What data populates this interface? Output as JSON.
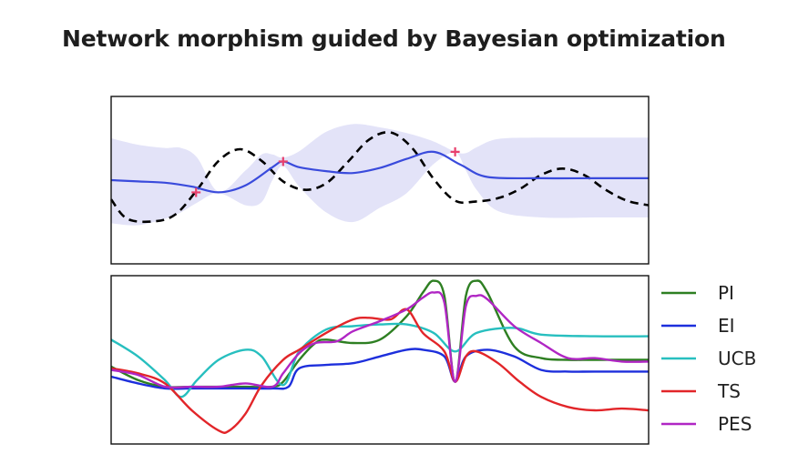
{
  "title": "Network morphism guided by Bayesian optimization",
  "chart_data": [
    {
      "type": "line",
      "panel": "gaussian-process-posterior",
      "x_range": [
        0,
        1
      ],
      "y_range": [
        -1.3,
        1.3
      ],
      "axis_ticks": "none",
      "grid": false,
      "series": [
        {
          "role": "objective",
          "style": "dashed",
          "color": "#000000",
          "x": [
            0,
            0.03,
            0.08,
            0.12,
            0.16,
            0.2,
            0.24,
            0.28,
            0.32,
            0.36,
            0.4,
            0.44,
            0.48,
            0.52,
            0.56,
            0.6,
            0.64,
            0.68,
            0.72,
            0.76,
            0.8,
            0.84,
            0.88,
            0.92,
            0.96,
            1.0
          ],
          "y": [
            -0.3,
            -0.6,
            -0.64,
            -0.53,
            -0.15,
            0.3,
            0.48,
            0.3,
            -0.02,
            -0.15,
            -0.05,
            0.28,
            0.63,
            0.74,
            0.5,
            0.02,
            -0.32,
            -0.33,
            -0.28,
            -0.14,
            0.08,
            0.18,
            0.08,
            -0.15,
            -0.32,
            -0.39
          ]
        },
        {
          "role": "posterior-mean",
          "style": "solid",
          "color": "#3a4bdc",
          "x": [
            0,
            0.05,
            0.1,
            0.15,
            0.2,
            0.25,
            0.3,
            0.32,
            0.35,
            0.4,
            0.45,
            0.5,
            0.55,
            0.6,
            0.65,
            0.7,
            0.8,
            0.9,
            1.0
          ],
          "y": [
            0.0,
            -0.02,
            -0.04,
            -0.1,
            -0.19,
            -0.08,
            0.2,
            0.29,
            0.2,
            0.14,
            0.11,
            0.19,
            0.33,
            0.44,
            0.24,
            0.05,
            0.03,
            0.03,
            0.03
          ]
        }
      ],
      "confidence_band": {
        "color": "#e3e3f8",
        "x": [
          0,
          0.05,
          0.1,
          0.13,
          0.16,
          0.2,
          0.25,
          0.28,
          0.3,
          0.32,
          0.35,
          0.4,
          0.45,
          0.5,
          0.55,
          0.6,
          0.64,
          0.66,
          0.68,
          0.72,
          0.8,
          0.9,
          1.0
        ],
        "upper": [
          0.65,
          0.55,
          0.5,
          0.5,
          0.35,
          -0.18,
          0.15,
          0.4,
          0.4,
          0.35,
          0.45,
          0.75,
          0.87,
          0.82,
          0.73,
          0.6,
          0.44,
          0.42,
          0.51,
          0.64,
          0.66,
          0.66,
          0.66
        ],
        "lower": [
          -0.67,
          -0.7,
          -0.6,
          -0.5,
          -0.35,
          -0.2,
          -0.39,
          -0.34,
          0.0,
          0.22,
          -0.1,
          -0.5,
          -0.65,
          -0.43,
          -0.2,
          0.25,
          0.43,
          0.15,
          -0.15,
          -0.48,
          -0.58,
          -0.58,
          -0.58
        ]
      },
      "observations": {
        "color": "#e8406c",
        "marker": "+",
        "points": [
          {
            "x": 0.158,
            "y": -0.19
          },
          {
            "x": 0.32,
            "y": 0.29
          },
          {
            "x": 0.64,
            "y": 0.44
          }
        ]
      }
    },
    {
      "type": "line",
      "panel": "acquisition-functions",
      "x_range": [
        0,
        1
      ],
      "y_range": [
        0,
        1
      ],
      "axis_ticks": "none",
      "grid": false,
      "legend_position": "right",
      "series": [
        {
          "name": "PI",
          "color": "#2e7f22",
          "x": [
            0,
            0.05,
            0.1,
            0.15,
            0.2,
            0.25,
            0.3,
            0.32,
            0.35,
            0.38,
            0.4,
            0.45,
            0.5,
            0.55,
            0.58,
            0.6,
            0.62,
            0.64,
            0.66,
            0.68,
            0.7,
            0.75,
            0.8,
            0.85,
            0.9,
            1.0
          ],
          "y": [
            0.46,
            0.38,
            0.34,
            0.34,
            0.34,
            0.34,
            0.34,
            0.37,
            0.5,
            0.6,
            0.62,
            0.6,
            0.62,
            0.76,
            0.9,
            0.97,
            0.88,
            0.37,
            0.88,
            0.97,
            0.9,
            0.58,
            0.51,
            0.5,
            0.5,
            0.5
          ]
        },
        {
          "name": "EI",
          "color": "#1d2fdc",
          "x": [
            0,
            0.05,
            0.1,
            0.15,
            0.2,
            0.25,
            0.3,
            0.33,
            0.35,
            0.4,
            0.45,
            0.5,
            0.55,
            0.58,
            0.62,
            0.64,
            0.66,
            0.7,
            0.75,
            0.8,
            0.85,
            0.9,
            1.0
          ],
          "y": [
            0.4,
            0.36,
            0.33,
            0.33,
            0.33,
            0.33,
            0.33,
            0.34,
            0.45,
            0.47,
            0.48,
            0.52,
            0.56,
            0.56,
            0.52,
            0.37,
            0.52,
            0.56,
            0.52,
            0.44,
            0.43,
            0.43,
            0.43
          ]
        },
        {
          "name": "UCB",
          "color": "#27bfbf",
          "x": [
            0,
            0.05,
            0.1,
            0.13,
            0.16,
            0.2,
            0.25,
            0.28,
            0.32,
            0.35,
            0.4,
            0.45,
            0.5,
            0.55,
            0.6,
            0.64,
            0.68,
            0.75,
            0.8,
            0.9,
            1.0
          ],
          "y": [
            0.62,
            0.52,
            0.38,
            0.28,
            0.38,
            0.5,
            0.56,
            0.52,
            0.35,
            0.55,
            0.68,
            0.7,
            0.71,
            0.71,
            0.66,
            0.55,
            0.66,
            0.69,
            0.65,
            0.64,
            0.64
          ]
        },
        {
          "name": "TS",
          "color": "#e22529",
          "x": [
            0,
            0.05,
            0.1,
            0.15,
            0.2,
            0.22,
            0.25,
            0.28,
            0.32,
            0.35,
            0.4,
            0.45,
            0.48,
            0.52,
            0.55,
            0.58,
            0.62,
            0.64,
            0.66,
            0.68,
            0.72,
            0.76,
            0.8,
            0.85,
            0.9,
            0.95,
            1.0
          ],
          "y": [
            0.45,
            0.42,
            0.36,
            0.2,
            0.08,
            0.08,
            0.18,
            0.35,
            0.5,
            0.56,
            0.66,
            0.74,
            0.75,
            0.74,
            0.8,
            0.66,
            0.55,
            0.37,
            0.52,
            0.55,
            0.48,
            0.37,
            0.28,
            0.22,
            0.2,
            0.21,
            0.2
          ]
        },
        {
          "name": "PES",
          "color": "#b026c4",
          "x": [
            0,
            0.05,
            0.1,
            0.15,
            0.2,
            0.25,
            0.3,
            0.32,
            0.35,
            0.38,
            0.42,
            0.45,
            0.5,
            0.55,
            0.58,
            0.6,
            0.62,
            0.64,
            0.66,
            0.68,
            0.7,
            0.75,
            0.8,
            0.85,
            0.9,
            0.95,
            1.0
          ],
          "y": [
            0.44,
            0.41,
            0.34,
            0.34,
            0.34,
            0.36,
            0.34,
            0.42,
            0.54,
            0.6,
            0.61,
            0.67,
            0.73,
            0.8,
            0.87,
            0.9,
            0.84,
            0.37,
            0.82,
            0.88,
            0.86,
            0.7,
            0.6,
            0.51,
            0.51,
            0.49,
            0.49
          ]
        }
      ]
    }
  ]
}
